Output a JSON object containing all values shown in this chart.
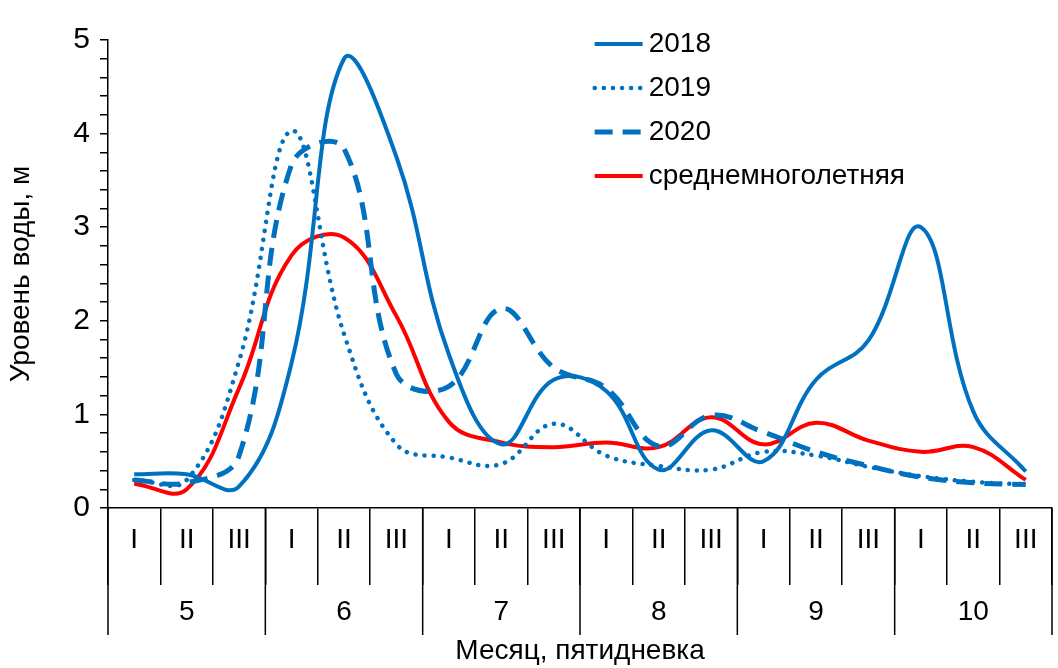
{
  "chart_data": {
    "type": "line",
    "xlabel": "Месяц, пятидневка",
    "ylabel": "Уровень воды, м",
    "categories": [
      "I",
      "II",
      "III",
      "I",
      "II",
      "III",
      "I",
      "II",
      "III",
      "I",
      "II",
      "III",
      "I",
      "II",
      "III",
      "I",
      "II",
      "III"
    ],
    "annotations": [
      "5",
      "6",
      "7",
      "8",
      "9",
      "10"
    ],
    "series": [
      {
        "name": "2018",
        "color": "#0070c0",
        "line_style": "solid",
        "values": [
          0.36,
          0.36,
          0.23,
          1.55,
          4.8,
          3.75,
          1.64,
          0.68,
          1.37,
          1.25,
          0.41,
          0.83,
          0.5,
          1.37,
          1.79,
          3.0,
          1.03,
          0.39
        ]
      },
      {
        "name": "2019",
        "color": "#0070c0",
        "line_style": "dotted",
        "values": [
          0.3,
          0.3,
          1.57,
          4.03,
          1.86,
          0.68,
          0.54,
          0.47,
          0.9,
          0.56,
          0.45,
          0.41,
          0.6,
          0.56,
          0.44,
          0.34,
          0.28,
          0.25
        ]
      },
      {
        "name": "2020",
        "color": "#0070c0",
        "line_style": "dashed",
        "values": [
          0.3,
          0.27,
          0.56,
          3.67,
          3.84,
          1.43,
          1.3,
          2.13,
          1.5,
          1.28,
          0.66,
          0.99,
          0.81,
          0.6,
          0.45,
          0.33,
          0.27,
          0.25
        ]
      },
      {
        "name": "среднемноголетняя",
        "color": "#ff0000",
        "line_style": "solid",
        "values": [
          0.26,
          0.2,
          1.28,
          2.7,
          2.89,
          2.05,
          0.92,
          0.7,
          0.65,
          0.7,
          0.65,
          0.97,
          0.68,
          0.91,
          0.72,
          0.6,
          0.65,
          0.3
        ]
      }
    ],
    "ylim": [
      0,
      5
    ],
    "yticks": [
      0,
      {
        "value": 0.2,
        "label": null
      },
      {
        "value": 0.4,
        "label": null
      },
      {
        "value": 0.6,
        "label": null
      },
      {
        "value": 0.8,
        "label": null
      },
      1,
      {
        "value": 1.2,
        "label": null
      },
      {
        "value": 1.4,
        "label": null
      },
      {
        "value": 1.6,
        "label": null
      },
      {
        "value": 1.8,
        "label": null
      },
      2,
      {
        "value": 2.2,
        "label": null
      },
      {
        "value": 2.4,
        "label": null
      },
      {
        "value": 2.6,
        "label": null
      },
      {
        "value": 2.8,
        "label": null
      },
      3,
      {
        "value": 3.2,
        "label": null
      },
      {
        "value": 3.4,
        "label": null
      },
      {
        "value": 3.6,
        "label": null
      },
      {
        "value": 3.8,
        "label": null
      },
      4,
      {
        "value": 4.2,
        "label": null
      },
      {
        "value": 4.4,
        "label": null
      },
      {
        "value": 4.6,
        "label": null
      },
      {
        "value": 4.8,
        "label": null
      },
      5
    ],
    "legend": "top right",
    "marker": "none",
    "grid": false
  }
}
